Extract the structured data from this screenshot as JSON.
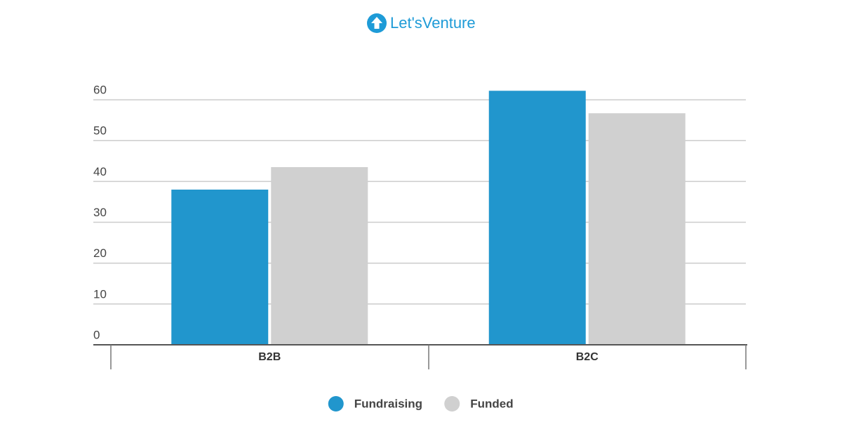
{
  "logo_text": "Let'sVenture",
  "chart_data": {
    "type": "bar",
    "categories": [
      "B2B",
      "B2C"
    ],
    "series": [
      {
        "name": "Fundraising",
        "color": "#2196cd",
        "values": [
          38,
          62.2
        ]
      },
      {
        "name": "Funded",
        "color": "#d0d0d0",
        "values": [
          43.5,
          56.7
        ]
      }
    ],
    "ylim": [
      0,
      64
    ],
    "yticks": [
      0,
      10,
      20,
      30,
      40,
      50,
      60
    ],
    "grid": true,
    "legend": "bottom"
  }
}
